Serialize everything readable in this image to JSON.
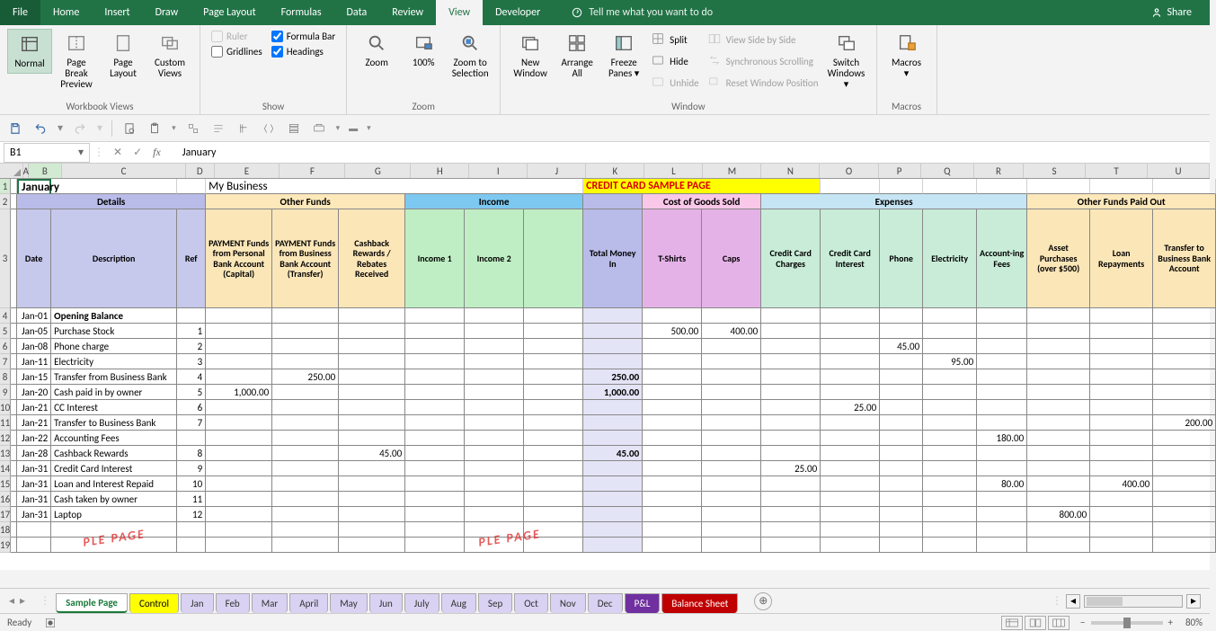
{
  "ribbonTabs": [
    "File",
    "Home",
    "Insert",
    "Draw",
    "Page Layout",
    "Formulas",
    "Data",
    "Review",
    "View",
    "Developer"
  ],
  "activeTab": "View",
  "tellMe": "Tell me what you want to do",
  "share": "Share",
  "groups": {
    "workbookViews": {
      "label": "Workbook Views",
      "normal": "Normal",
      "pageBreak": "Page Break Preview",
      "pageLayout": "Page Layout",
      "custom": "Custom Views"
    },
    "show": {
      "label": "Show",
      "ruler": "Ruler",
      "gridlines": "Gridlines",
      "formula": "Formula Bar",
      "headings": "Headings"
    },
    "zoom": {
      "label": "Zoom",
      "zoom": "Zoom",
      "p100": "100%",
      "zts": "Zoom to Selection"
    },
    "window": {
      "label": "Window",
      "neww": "New Window",
      "arrange": "Arrange All",
      "freeze": "Freeze Panes",
      "split": "Split",
      "hide": "Hide",
      "unhide": "Unhide",
      "sbs": "View Side by Side",
      "sync": "Synchronous Scrolling",
      "reset": "Reset Window Position",
      "switch": "Switch Windows"
    },
    "macros": {
      "label": "Macros",
      "macros": "Macros"
    }
  },
  "nameBox": "B1",
  "formulaText": "January",
  "columns": [
    {
      "l": "A",
      "w": 6
    },
    {
      "l": "B",
      "w": 38
    },
    {
      "l": "C",
      "w": 140
    },
    {
      "l": "D",
      "w": 32
    },
    {
      "l": "E",
      "w": 74
    },
    {
      "l": "F",
      "w": 74
    },
    {
      "l": "G",
      "w": 74
    },
    {
      "l": "H",
      "w": 66
    },
    {
      "l": "I",
      "w": 66
    },
    {
      "l": "J",
      "w": 66
    },
    {
      "l": "K",
      "w": 66
    },
    {
      "l": "L",
      "w": 66
    },
    {
      "l": "M",
      "w": 66
    },
    {
      "l": "N",
      "w": 66
    },
    {
      "l": "O",
      "w": 66
    },
    {
      "l": "P",
      "w": 48
    },
    {
      "l": "Q",
      "w": 60
    },
    {
      "l": "R",
      "w": 56
    },
    {
      "l": "S",
      "w": 70
    },
    {
      "l": "T",
      "w": 70
    },
    {
      "l": "U",
      "w": 70
    }
  ],
  "row1": {
    "b": "January",
    "e": "My Business",
    "k": "CREDIT CARD SAMPLE PAGE",
    "creditBg": "#ffff00",
    "creditColor": "#d80000"
  },
  "row2": {
    "details": "Details",
    "other": "Other Funds",
    "income": "Income",
    "cogs": "Cost of Goods Sold",
    "exp": "Expenses",
    "paid": "Other Funds Paid Out"
  },
  "row3": {
    "date": "Date",
    "desc": "Description",
    "ref": "Ref",
    "e": "PAYMENT Funds from Personal Bank Account (Capital)",
    "f": "PAYMENT Funds from Business Bank Account (Transfer)",
    "g": "Cashback Rewards / Rebates Received",
    "h": "Income 1",
    "i": "Income 2",
    "j": "",
    "k": "Total Money In",
    "l": "T-Shirts",
    "m": "Caps",
    "n": "Credit Card Charges",
    "o": "Credit Card Interest",
    "p": "Phone",
    "q": "Electricity",
    "r": "Account-ing Fees",
    "s": "Asset Purchases (over $500)",
    "t": "Loan Repayments",
    "u": "Transfer to Business Bank Account"
  },
  "dataRows": [
    {
      "r": 4,
      "b": "Jan-01",
      "c": "Opening Balance",
      "cb": true
    },
    {
      "r": 5,
      "b": "Jan-05",
      "c": "Purchase Stock",
      "d": "1",
      "l": "500.00",
      "m": "400.00"
    },
    {
      "r": 6,
      "b": "Jan-08",
      "c": "Phone charge",
      "d": "2",
      "p": "45.00"
    },
    {
      "r": 7,
      "b": "Jan-11",
      "c": "Electricity",
      "d": "3",
      "q": "95.00"
    },
    {
      "r": 8,
      "b": "Jan-15",
      "c": "Transfer from Business Bank",
      "d": "4",
      "f": "250.00",
      "k": "250.00",
      "kb": true
    },
    {
      "r": 9,
      "b": "Jan-20",
      "c": "Cash paid in by owner",
      "d": "5",
      "e": "1,000.00",
      "k": "1,000.00",
      "kb": true
    },
    {
      "r": 10,
      "b": "Jan-21",
      "c": "CC Interest",
      "d": "6",
      "o": "25.00"
    },
    {
      "r": 11,
      "b": "Jan-21",
      "c": "Transfer to Business Bank",
      "d": "7",
      "u": "200.00"
    },
    {
      "r": 12,
      "b": "Jan-22",
      "c": "Accounting Fees",
      "r2": "180.00"
    },
    {
      "r": 13,
      "b": "Jan-28",
      "c": "Cashback Rewards",
      "d": "8",
      "g": "45.00",
      "k": "45.00",
      "kb": true
    },
    {
      "r": 14,
      "b": "Jan-31",
      "c": "Credit Card Interest",
      "d": "9",
      "n": "25.00"
    },
    {
      "r": 15,
      "b": "Jan-31",
      "c": "Loan and Interest Repaid",
      "d": "10",
      "r2": "80.00",
      "t": "400.00"
    },
    {
      "r": 16,
      "b": "Jan-31",
      "c": "Cash taken by owner",
      "d": "11"
    },
    {
      "r": 17,
      "b": "Jan-31",
      "c": "Laptop",
      "d": "12",
      "s": "800.00"
    },
    {
      "r": 18
    },
    {
      "r": 19
    }
  ],
  "watermark": "PLE PAGE",
  "sheetTabs": [
    {
      "l": "Sample Page",
      "bg": "#ffffff",
      "fg": "#1a7a3a",
      "b": true,
      "u": true
    },
    {
      "l": "Control",
      "bg": "#ffff00",
      "fg": "#000"
    },
    {
      "l": "Jan",
      "bg": "#d9d2f2",
      "fg": "#333"
    },
    {
      "l": "Feb",
      "bg": "#d9d2f2",
      "fg": "#333"
    },
    {
      "l": "Mar",
      "bg": "#d9d2f2",
      "fg": "#333"
    },
    {
      "l": "April",
      "bg": "#d9d2f2",
      "fg": "#333"
    },
    {
      "l": "May",
      "bg": "#d9d2f2",
      "fg": "#333"
    },
    {
      "l": "Jun",
      "bg": "#d9d2f2",
      "fg": "#333"
    },
    {
      "l": "July",
      "bg": "#d9d2f2",
      "fg": "#333"
    },
    {
      "l": "Aug",
      "bg": "#d9d2f2",
      "fg": "#333"
    },
    {
      "l": "Sep",
      "bg": "#d9d2f2",
      "fg": "#333"
    },
    {
      "l": "Oct",
      "bg": "#d9d2f2",
      "fg": "#333"
    },
    {
      "l": "Nov",
      "bg": "#d9d2f2",
      "fg": "#333"
    },
    {
      "l": "Dec",
      "bg": "#d9d2f2",
      "fg": "#333"
    },
    {
      "l": "P&L",
      "bg": "#7030a0",
      "fg": "#fff"
    },
    {
      "l": "Balance Sheet",
      "bg": "#c00000",
      "fg": "#fff"
    }
  ],
  "status": {
    "ready": "Ready",
    "zoom": "80%"
  }
}
